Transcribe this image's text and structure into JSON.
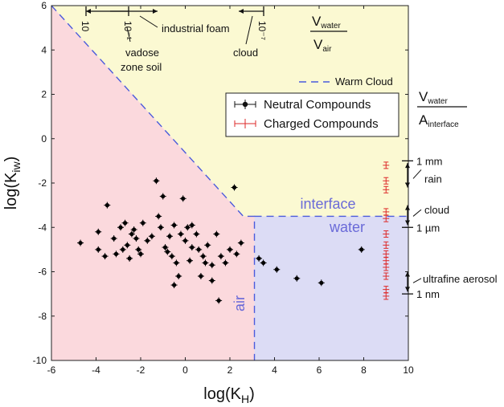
{
  "chart_data": {
    "type": "scatter",
    "xlabel": "log(K_H)",
    "ylabel": "log(K_iw)",
    "xlim": [
      -6,
      10
    ],
    "ylim": [
      -10,
      6
    ],
    "xticks": [
      -6,
      -4,
      -2,
      0,
      2,
      4,
      6,
      8,
      10
    ],
    "yticks": [
      -10,
      -8,
      -6,
      -4,
      -2,
      0,
      2,
      4,
      6
    ],
    "grid": false,
    "regions": {
      "air": {
        "label": "air",
        "color": "#fbd9dd"
      },
      "water": {
        "label": "water",
        "color": "#dcdcf5"
      },
      "interface": {
        "label": "interface",
        "color": "#fbf9d2"
      }
    },
    "warm_cloud_line": {
      "name": "Warm Cloud",
      "color": "#4b5bdc",
      "points": [
        [
          -6,
          6
        ],
        [
          2.6,
          -3.5
        ],
        [
          3.1,
          -3.5
        ],
        [
          3.1,
          -10
        ],
        [
          10,
          -3.5
        ]
      ]
    },
    "legend": {
      "placement": "upper-right",
      "entries": [
        "Neutral Compounds",
        "Charged Compounds"
      ]
    },
    "series": [
      {
        "name": "Neutral Compounds",
        "color": "#000000",
        "points": [
          [
            -4.7,
            -4.7
          ],
          [
            -3.9,
            -4.2
          ],
          [
            -3.9,
            -5.0
          ],
          [
            -3.6,
            -5.3
          ],
          [
            -3.5,
            -3.0
          ],
          [
            -3.2,
            -4.5
          ],
          [
            -3.1,
            -5.2
          ],
          [
            -2.9,
            -4.0
          ],
          [
            -2.8,
            -5.0
          ],
          [
            -2.7,
            -3.8
          ],
          [
            -2.6,
            -4.8
          ],
          [
            -2.5,
            -5.4
          ],
          [
            -2.4,
            -4.3
          ],
          [
            -2.3,
            -4.1
          ],
          [
            -2.2,
            -4.5
          ],
          [
            -2.1,
            -5.0
          ],
          [
            -2.0,
            -5.2
          ],
          [
            -1.9,
            -3.8
          ],
          [
            -1.7,
            -4.6
          ],
          [
            -1.5,
            -4.4
          ],
          [
            -1.3,
            -1.9
          ],
          [
            -1.2,
            -3.5
          ],
          [
            -1.1,
            -4.0
          ],
          [
            -1.0,
            -2.6
          ],
          [
            -0.9,
            -4.9
          ],
          [
            -0.8,
            -5.1
          ],
          [
            -0.7,
            -4.4
          ],
          [
            -0.6,
            -5.3
          ],
          [
            -0.5,
            -3.9
          ],
          [
            -0.5,
            -6.6
          ],
          [
            -0.4,
            -5.6
          ],
          [
            -0.3,
            -6.2
          ],
          [
            -0.2,
            -4.3
          ],
          [
            -0.1,
            -2.7
          ],
          [
            0.0,
            -4.6
          ],
          [
            0.1,
            -4.0
          ],
          [
            0.2,
            -5.5
          ],
          [
            0.3,
            -3.9
          ],
          [
            0.3,
            -4.9
          ],
          [
            0.5,
            -4.3
          ],
          [
            0.6,
            -5.0
          ],
          [
            0.7,
            -6.2
          ],
          [
            0.8,
            -5.3
          ],
          [
            0.9,
            -5.6
          ],
          [
            1.0,
            -4.8
          ],
          [
            1.2,
            -5.7
          ],
          [
            1.2,
            -6.4
          ],
          [
            1.4,
            -4.3
          ],
          [
            1.5,
            -7.3
          ],
          [
            1.6,
            -5.3
          ],
          [
            1.8,
            -5.6
          ],
          [
            2.0,
            -5.0
          ],
          [
            2.2,
            -2.2
          ],
          [
            2.3,
            -5.2
          ],
          [
            2.5,
            -4.7
          ],
          [
            3.3,
            -5.4
          ],
          [
            3.5,
            -5.6
          ],
          [
            4.1,
            -5.9
          ],
          [
            5.0,
            -6.3
          ],
          [
            6.1,
            -6.5
          ],
          [
            7.9,
            -5.0
          ]
        ]
      },
      {
        "name": "Charged Compounds",
        "color": "#dd2a2a",
        "points": [
          [
            9.0,
            -1.2
          ],
          [
            9.0,
            -1.9
          ],
          [
            9.0,
            -2.3
          ],
          [
            9.0,
            -3.3
          ],
          [
            9.0,
            -3.6
          ],
          [
            9.0,
            -4.3
          ],
          [
            9.0,
            -4.8
          ],
          [
            9.0,
            -5.2
          ],
          [
            9.0,
            -5.5
          ],
          [
            9.0,
            -5.8
          ],
          [
            9.0,
            -6.2
          ],
          [
            9.0,
            -6.8
          ],
          [
            9.0,
            -7.1
          ]
        ]
      }
    ],
    "right_axis_annotations": [
      {
        "label": "1 mm",
        "y": -1.0
      },
      {
        "label": "rain",
        "y": -1.8
      },
      {
        "label": "cloud",
        "y": -3.2
      },
      {
        "label": "1 µm",
        "y": -4.0
      },
      {
        "label": "ultrafine aerosol",
        "y": -6.3
      },
      {
        "label": "1 nm",
        "y": -7.0
      }
    ],
    "top_annotations": {
      "industrial_foam": "industrial foam",
      "vadose_zone_soil_line1": "vadose",
      "vadose_zone_soil_line2": "zone soil",
      "cloud": "cloud",
      "tick_10": "10",
      "tick_10_minus1": "10⁻¹",
      "tick_10_minus7": "10⁻⁷"
    },
    "ratio_labels": {
      "vwater_vair_num": "V",
      "vwater_vair_num_sub": "water",
      "vwater_vair_den": "V",
      "vwater_vair_den_sub": "air",
      "vwater_ainterface_num": "V",
      "vwater_ainterface_num_sub": "water",
      "vwater_ainterface_den": "A",
      "vwater_ainterface_den_sub": "interface"
    }
  }
}
